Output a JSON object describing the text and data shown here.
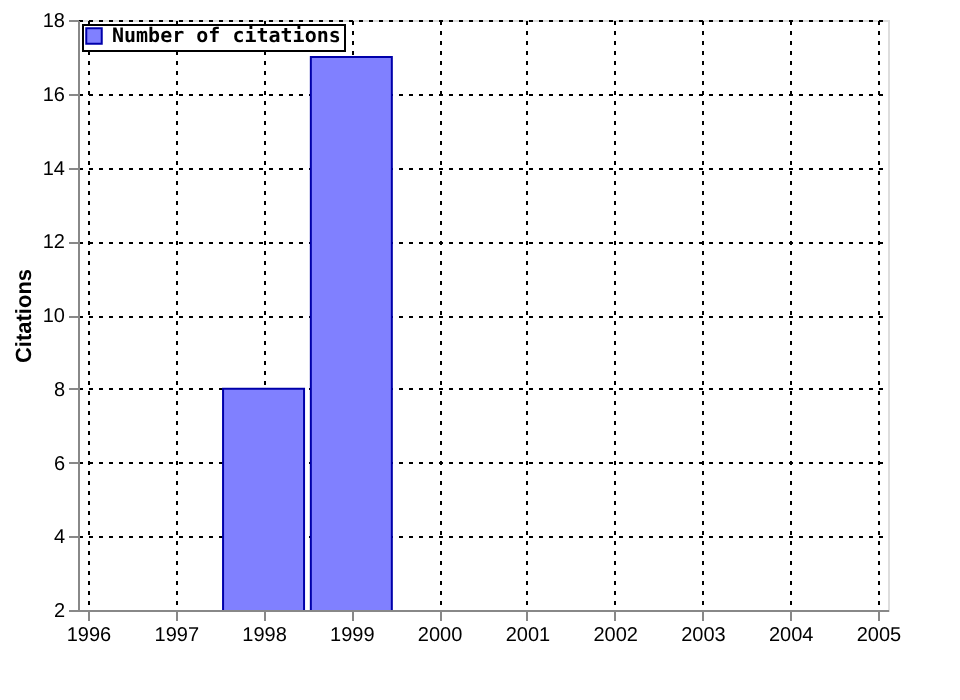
{
  "chart_data": {
    "type": "bar",
    "ylabel": "Citations",
    "x": [
      1998,
      1999
    ],
    "series": [
      {
        "name": "Number of citations",
        "color": "#8080ff",
        "values": [
          8,
          17
        ]
      }
    ],
    "xlim": [
      1996,
      2005
    ],
    "xticks": [
      1996,
      1997,
      1998,
      1999,
      2000,
      2001,
      2002,
      2003,
      2004,
      2005
    ],
    "ylim": [
      2,
      18
    ],
    "yticks": [
      2,
      4,
      6,
      8,
      10,
      12,
      14,
      16,
      18
    ],
    "grid": true,
    "legend": "top left"
  }
}
